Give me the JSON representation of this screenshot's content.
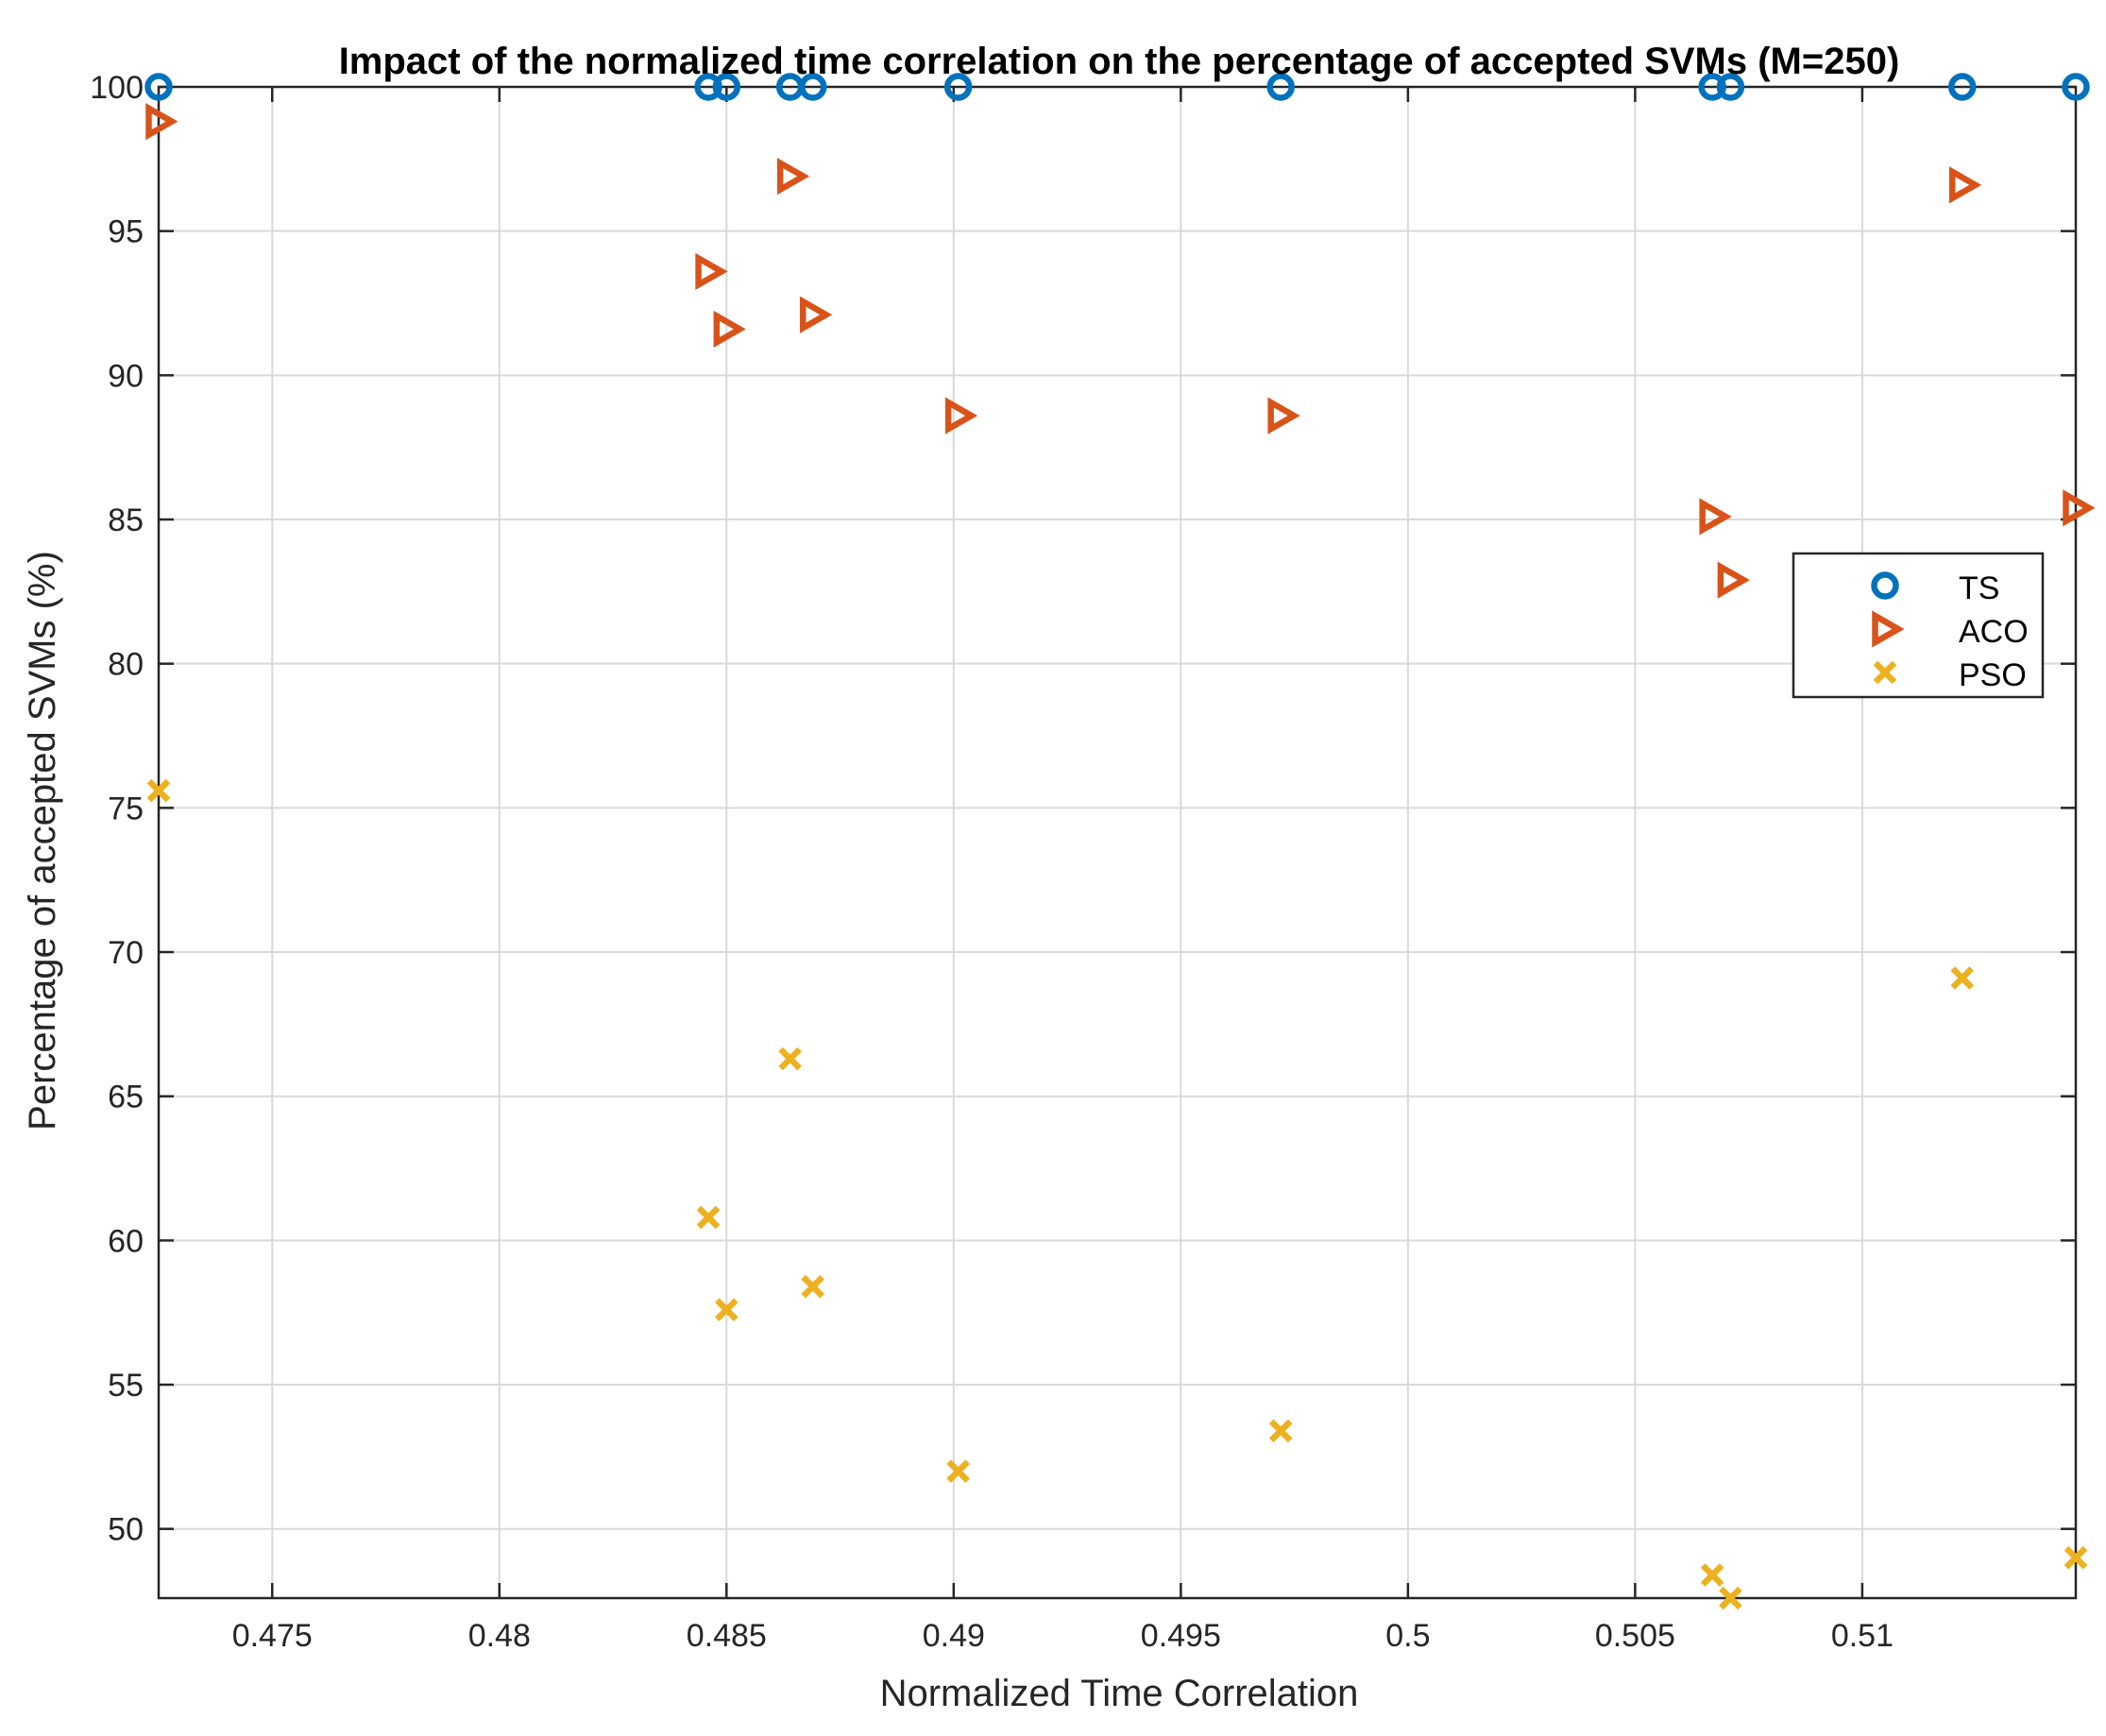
{
  "chart_data": {
    "type": "scatter",
    "title": "Impact of the normalized time correlation on the percentage of accepted SVMs (M=250)",
    "xlabel": "Normalized Time Correlation",
    "ylabel": "Percentage of accepted SVMs (%)",
    "xlim": [
      0.4725,
      0.5147
    ],
    "ylim": [
      47.6,
      100
    ],
    "xticks": [
      0.475,
      0.48,
      0.485,
      0.49,
      0.495,
      0.5,
      0.505,
      0.51
    ],
    "xtick_labels": [
      "0.475",
      "0.48",
      "0.485",
      "0.49",
      "0.495",
      "0.5",
      "0.505",
      "0.51"
    ],
    "yticks": [
      50,
      55,
      60,
      65,
      70,
      75,
      80,
      85,
      90,
      95,
      100
    ],
    "ytick_labels": [
      "50",
      "55",
      "60",
      "65",
      "70",
      "75",
      "80",
      "85",
      "90",
      "95",
      "100"
    ],
    "grid": true,
    "legend_position": "right",
    "x": [
      0.4725,
      0.4846,
      0.485,
      0.4864,
      0.4869,
      0.4901,
      0.4972,
      0.5067,
      0.5071,
      0.5122,
      0.5147
    ],
    "series": [
      {
        "name": "TS",
        "marker": "circle",
        "color": "#0072BD",
        "values": [
          100,
          100,
          100,
          100,
          100,
          100,
          100,
          100,
          100,
          100,
          100
        ]
      },
      {
        "name": "ACO",
        "marker": "triangle-right",
        "color": "#D95319",
        "values": [
          98.8,
          93.6,
          91.6,
          96.9,
          92.1,
          88.6,
          88.6,
          85.1,
          82.9,
          96.6,
          85.4
        ]
      },
      {
        "name": "PSO",
        "marker": "x",
        "color": "#EDB120",
        "values": [
          75.6,
          60.8,
          57.6,
          66.3,
          58.4,
          52.0,
          53.4,
          48.4,
          47.6,
          69.1,
          49.0
        ]
      }
    ]
  }
}
